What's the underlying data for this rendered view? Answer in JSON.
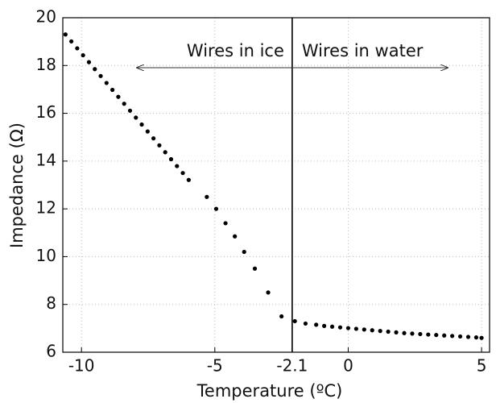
{
  "chart_data": {
    "type": "scatter",
    "x_label": "Temperature (ºC)",
    "y_label": "Impedance (Ω)",
    "xlim": [
      -10.7,
      5.3
    ],
    "ylim": [
      6,
      20
    ],
    "xticks": [
      -10,
      -5,
      -2.1,
      0,
      5
    ],
    "yticks": [
      6,
      8,
      10,
      12,
      14,
      16,
      18,
      20
    ],
    "grid": true,
    "color": "#000000",
    "vline": -2.1,
    "annotations": [
      "Wires in ice",
      "Wires in water"
    ],
    "x": [
      -10.6,
      -10.38,
      -10.16,
      -9.94,
      -9.72,
      -9.5,
      -9.28,
      -9.06,
      -8.84,
      -8.62,
      -8.4,
      -8.18,
      -7.96,
      -7.74,
      -7.52,
      -7.3,
      -7.08,
      -6.86,
      -6.64,
      -6.42,
      -6.2,
      -5.98,
      -5.3,
      -4.95,
      -4.6,
      -4.25,
      -3.9,
      -3.5,
      -3.0,
      -2.5,
      -2.0,
      -1.6,
      -1.2,
      -0.9,
      -0.6,
      -0.3,
      0.0,
      0.3,
      0.6,
      0.9,
      1.2,
      1.5,
      1.8,
      2.1,
      2.4,
      2.7,
      3.0,
      3.3,
      3.6,
      3.9,
      4.2,
      4.5,
      4.8,
      5.0
    ],
    "values": [
      19.3,
      19.01,
      18.72,
      18.43,
      18.14,
      17.85,
      17.56,
      17.27,
      16.98,
      16.69,
      16.4,
      16.11,
      15.82,
      15.53,
      15.24,
      14.95,
      14.66,
      14.37,
      14.08,
      13.79,
      13.5,
      13.21,
      12.5,
      12.0,
      11.4,
      10.85,
      10.2,
      9.5,
      8.5,
      7.5,
      7.3,
      7.2,
      7.15,
      7.1,
      7.07,
      7.04,
      7.01,
      6.98,
      6.95,
      6.92,
      6.89,
      6.86,
      6.83,
      6.8,
      6.78,
      6.76,
      6.74,
      6.72,
      6.7,
      6.68,
      6.66,
      6.64,
      6.62,
      6.6
    ]
  }
}
